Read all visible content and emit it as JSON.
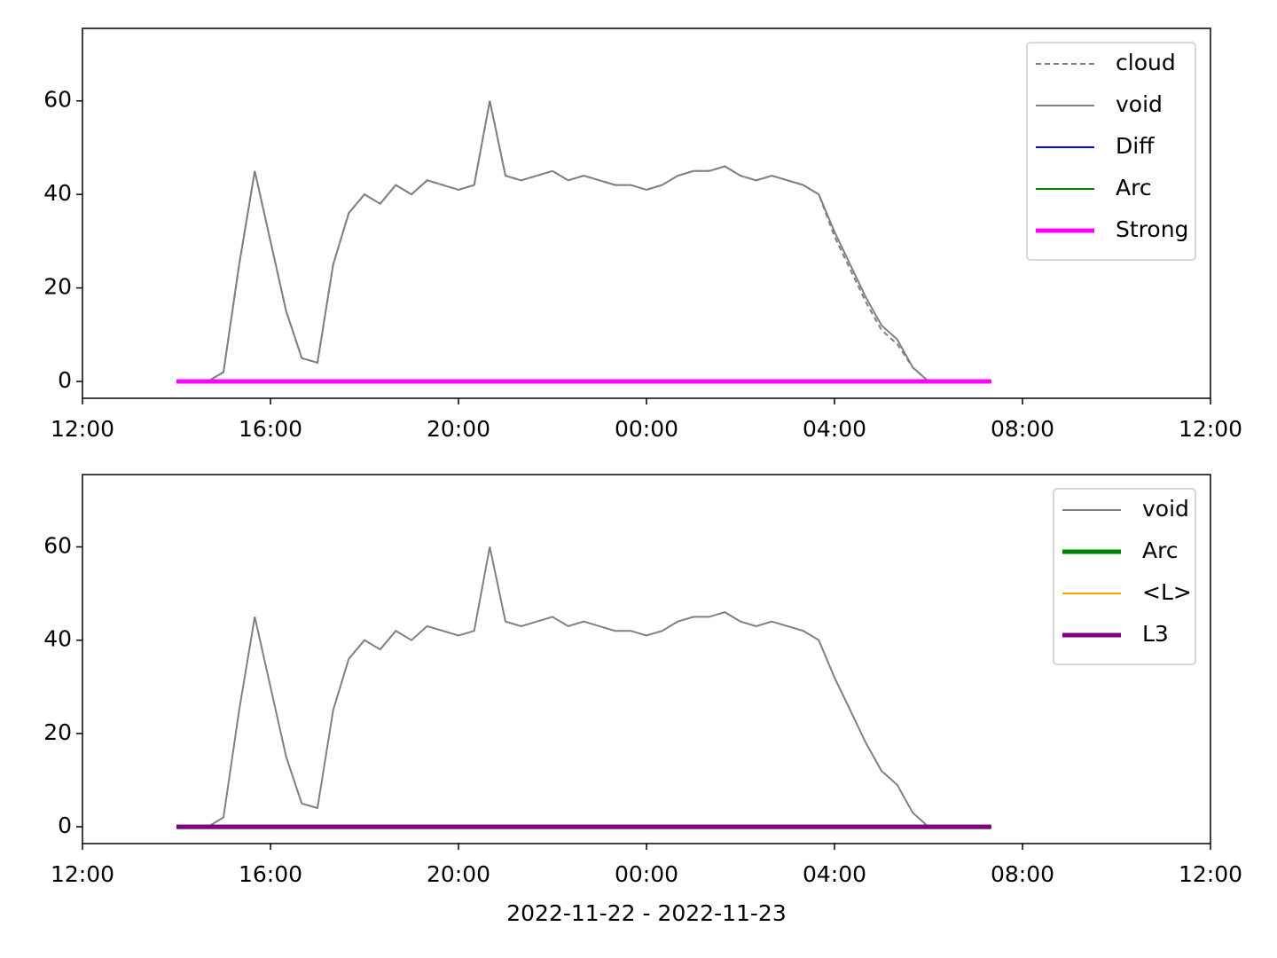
{
  "chart_data": [
    {
      "type": "line",
      "x": [
        "14:00",
        "14:20",
        "14:40",
        "15:00",
        "15:20",
        "15:40",
        "16:00",
        "16:20",
        "16:40",
        "17:00",
        "17:20",
        "17:40",
        "18:00",
        "18:20",
        "18:40",
        "19:00",
        "19:20",
        "19:40",
        "20:00",
        "20:20",
        "20:40",
        "21:00",
        "21:20",
        "21:40",
        "22:00",
        "22:20",
        "22:40",
        "23:00",
        "23:20",
        "23:40",
        "00:00",
        "00:20",
        "00:40",
        "01:00",
        "01:20",
        "01:40",
        "02:00",
        "02:20",
        "02:40",
        "03:00",
        "03:20",
        "03:40",
        "04:00",
        "04:20",
        "04:40",
        "05:00",
        "05:20",
        "05:40",
        "06:00",
        "06:20",
        "06:40",
        "07:00",
        "07:20"
      ],
      "xlim": [
        "12:00",
        "12:00"
      ],
      "xticks": [
        "12:00",
        "16:00",
        "20:00",
        "00:00",
        "04:00",
        "08:00",
        "12:00"
      ],
      "ylim": [
        -3.6,
        75.5
      ],
      "yticks": [
        0,
        20,
        40,
        60
      ],
      "legend": "upper right",
      "series": [
        {
          "name": "cloud",
          "color": "#808080",
          "linestyle": "dashed",
          "linewidth": 2,
          "values": [
            0,
            0,
            0,
            2,
            25,
            45,
            30,
            15,
            5,
            4,
            25,
            36,
            40,
            38,
            42,
            40,
            43,
            42,
            41,
            42,
            60,
            44,
            43,
            44,
            45,
            43,
            44,
            43,
            42,
            42,
            41,
            42,
            44,
            45,
            45,
            46,
            44,
            43,
            44,
            43,
            42,
            40,
            31,
            24,
            17,
            11,
            8,
            3,
            0,
            0,
            0,
            0,
            0
          ]
        },
        {
          "name": "void",
          "color": "#808080",
          "linestyle": "solid",
          "linewidth": 2,
          "values": [
            0,
            0,
            0,
            2,
            25,
            45,
            30,
            15,
            5,
            4,
            25,
            36,
            40,
            38,
            42,
            40,
            43,
            42,
            41,
            42,
            60,
            44,
            43,
            44,
            45,
            43,
            44,
            43,
            42,
            42,
            41,
            42,
            44,
            45,
            45,
            46,
            44,
            43,
            44,
            43,
            42,
            40,
            32,
            25,
            18,
            12,
            9,
            3,
            0,
            0,
            0,
            0,
            0
          ]
        },
        {
          "name": "Diff",
          "color": "#0000ff",
          "linestyle": "solid",
          "linewidth": 2,
          "values": [
            0,
            0,
            0,
            0,
            0,
            0,
            0,
            0,
            0,
            0,
            0,
            0,
            0,
            0,
            0,
            0,
            0,
            0,
            0,
            0,
            0,
            0,
            0,
            0,
            0,
            0,
            0,
            0,
            0,
            0,
            0,
            0,
            0,
            0,
            0,
            0,
            0,
            0,
            0,
            0,
            0,
            0,
            0,
            0,
            0,
            0,
            0,
            0,
            0,
            0,
            0,
            0,
            0
          ]
        },
        {
          "name": "Arc",
          "color": "#008000",
          "linestyle": "solid",
          "linewidth": 2,
          "values": [
            0,
            0,
            0,
            0,
            0,
            0,
            0,
            0,
            0,
            0,
            0,
            0,
            0,
            0,
            0,
            0,
            0,
            0,
            0,
            0,
            0,
            0,
            0,
            0,
            0,
            0,
            0,
            0,
            0,
            0,
            0,
            0,
            0,
            0,
            0,
            0,
            0,
            0,
            0,
            0,
            0,
            0,
            0,
            0,
            0,
            0,
            0,
            0,
            0,
            0,
            0,
            0,
            0
          ]
        },
        {
          "name": "Strong",
          "color": "#ff00ff",
          "linestyle": "solid",
          "linewidth": 5,
          "values": [
            0,
            0,
            0,
            0,
            0,
            0,
            0,
            0,
            0,
            0,
            0,
            0,
            0,
            0,
            0,
            0,
            0,
            0,
            0,
            0,
            0,
            0,
            0,
            0,
            0,
            0,
            0,
            0,
            0,
            0,
            0,
            0,
            0,
            0,
            0,
            0,
            0,
            0,
            0,
            0,
            0,
            0,
            0,
            0,
            0,
            0,
            0,
            0,
            0,
            0,
            0,
            0,
            0
          ]
        }
      ]
    },
    {
      "type": "line",
      "xlabel": "2022-11-22 - 2022-11-23",
      "x": [
        "14:00",
        "14:20",
        "14:40",
        "15:00",
        "15:20",
        "15:40",
        "16:00",
        "16:20",
        "16:40",
        "17:00",
        "17:20",
        "17:40",
        "18:00",
        "18:20",
        "18:40",
        "19:00",
        "19:20",
        "19:40",
        "20:00",
        "20:20",
        "20:40",
        "21:00",
        "21:20",
        "21:40",
        "22:00",
        "22:20",
        "22:40",
        "23:00",
        "23:20",
        "23:40",
        "00:00",
        "00:20",
        "00:40",
        "01:00",
        "01:20",
        "01:40",
        "02:00",
        "02:20",
        "02:40",
        "03:00",
        "03:20",
        "03:40",
        "04:00",
        "04:20",
        "04:40",
        "05:00",
        "05:20",
        "05:40",
        "06:00",
        "06:20",
        "06:40",
        "07:00",
        "07:20"
      ],
      "xlim": [
        "12:00",
        "12:00"
      ],
      "xticks": [
        "12:00",
        "16:00",
        "20:00",
        "00:00",
        "04:00",
        "08:00",
        "12:00"
      ],
      "ylim": [
        -3.6,
        75.5
      ],
      "yticks": [
        0,
        20,
        40,
        60
      ],
      "legend": "upper right",
      "series": [
        {
          "name": "void",
          "color": "#808080",
          "linestyle": "solid",
          "linewidth": 2,
          "values": [
            0,
            0,
            0,
            2,
            25,
            45,
            30,
            15,
            5,
            4,
            25,
            36,
            40,
            38,
            42,
            40,
            43,
            42,
            41,
            42,
            60,
            44,
            43,
            44,
            45,
            43,
            44,
            43,
            42,
            42,
            41,
            42,
            44,
            45,
            45,
            46,
            44,
            43,
            44,
            43,
            42,
            40,
            32,
            25,
            18,
            12,
            9,
            3,
            0,
            0,
            0,
            0,
            0
          ]
        },
        {
          "name": "Arc",
          "color": "#008000",
          "linestyle": "solid",
          "linewidth": 5,
          "values": [
            0,
            0,
            0,
            0,
            0,
            0,
            0,
            0,
            0,
            0,
            0,
            0,
            0,
            0,
            0,
            0,
            0,
            0,
            0,
            0,
            0,
            0,
            0,
            0,
            0,
            0,
            0,
            0,
            0,
            0,
            0,
            0,
            0,
            0,
            0,
            0,
            0,
            0,
            0,
            0,
            0,
            0,
            0,
            0,
            0,
            0,
            0,
            0,
            0,
            0,
            0,
            0,
            0
          ]
        },
        {
          "name": "<L>",
          "color": "#ffa500",
          "linestyle": "solid",
          "linewidth": 2,
          "values": [
            0,
            0,
            0,
            0,
            0,
            0,
            0,
            0,
            0,
            0,
            0,
            0,
            0,
            0,
            0,
            0,
            0,
            0,
            0,
            0,
            0,
            0,
            0,
            0,
            0,
            0,
            0,
            0,
            0,
            0,
            0,
            0,
            0,
            0,
            0,
            0,
            0,
            0,
            0,
            0,
            0,
            0,
            0,
            0,
            0,
            0,
            0,
            0,
            0,
            0,
            0,
            0,
            0
          ]
        },
        {
          "name": "L3",
          "color": "#800080",
          "linestyle": "solid",
          "linewidth": 5,
          "values": [
            0,
            0,
            0,
            0,
            0,
            0,
            0,
            0,
            0,
            0,
            0,
            0,
            0,
            0,
            0,
            0,
            0,
            0,
            0,
            0,
            0,
            0,
            0,
            0,
            0,
            0,
            0,
            0,
            0,
            0,
            0,
            0,
            0,
            0,
            0,
            0,
            0,
            0,
            0,
            0,
            0,
            0,
            0,
            0,
            0,
            0,
            0,
            0,
            0,
            0,
            0,
            0,
            0
          ]
        }
      ]
    }
  ]
}
